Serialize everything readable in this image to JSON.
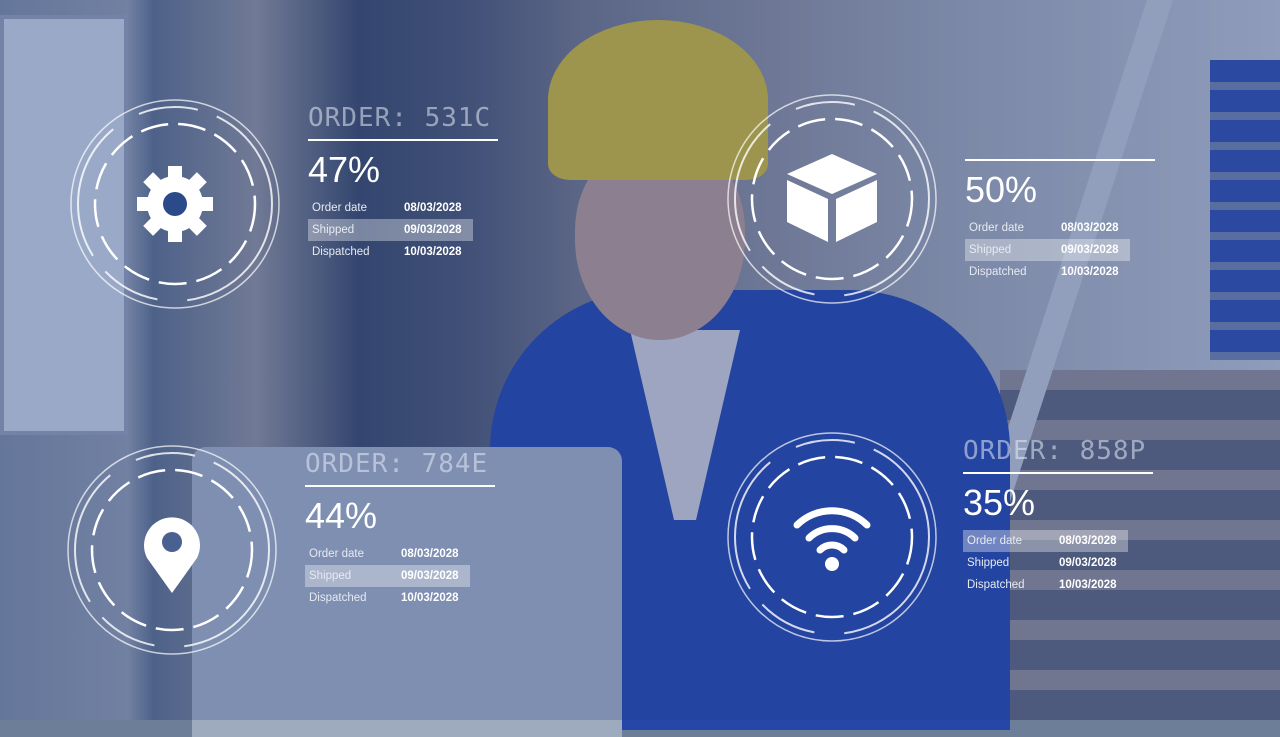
{
  "panels": [
    {
      "order": "ORDER: 531C",
      "percent": "47%",
      "icon": "gear-icon",
      "highlight": 1,
      "rows": [
        {
          "label": "Order date",
          "value": "08/03/2028"
        },
        {
          "label": "Shipped",
          "value": "09/03/2028"
        },
        {
          "label": "Dispatched",
          "value": "10/03/2028"
        }
      ]
    },
    {
      "order": "",
      "percent": "50%",
      "icon": "box-icon",
      "highlight": 1,
      "rows": [
        {
          "label": "Order date",
          "value": "08/03/2028"
        },
        {
          "label": "Shipped",
          "value": "09/03/2028"
        },
        {
          "label": "Dispatched",
          "value": "10/03/2028"
        }
      ]
    },
    {
      "order": "ORDER: 784E",
      "percent": "44%",
      "icon": "location-pin-icon",
      "highlight": 1,
      "rows": [
        {
          "label": "Order date",
          "value": "08/03/2028"
        },
        {
          "label": "Shipped",
          "value": "09/03/2028"
        },
        {
          "label": "Dispatched",
          "value": "10/03/2028"
        }
      ]
    },
    {
      "order": "ORDER: 858P",
      "percent": "35%",
      "icon": "wifi-icon",
      "highlight": 0,
      "rows": [
        {
          "label": "Order date",
          "value": "08/03/2028"
        },
        {
          "label": "Shipped",
          "value": "09/03/2028"
        },
        {
          "label": "Dispatched",
          "value": "10/03/2028"
        }
      ]
    }
  ]
}
